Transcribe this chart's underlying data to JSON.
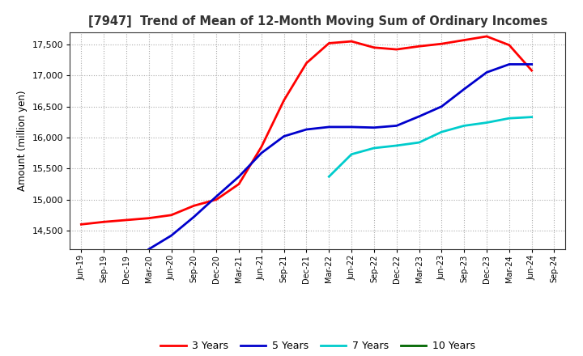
{
  "title": "[7947]  Trend of Mean of 12-Month Moving Sum of Ordinary Incomes",
  "ylabel": "Amount (million yen)",
  "ylim": [
    14200,
    17700
  ],
  "yticks": [
    14500,
    15000,
    15500,
    16000,
    16500,
    17000,
    17500
  ],
  "background_color": "#ffffff",
  "plot_bg_color": "#ffffff",
  "grid_color": "#aaaaaa",
  "x_labels": [
    "Jun-19",
    "Sep-19",
    "Dec-19",
    "Mar-20",
    "Jun-20",
    "Sep-20",
    "Dec-20",
    "Mar-21",
    "Jun-21",
    "Sep-21",
    "Dec-21",
    "Mar-22",
    "Jun-22",
    "Sep-22",
    "Dec-22",
    "Mar-23",
    "Jun-23",
    "Sep-23",
    "Dec-23",
    "Mar-24",
    "Jun-24",
    "Sep-24"
  ],
  "series": {
    "3 Years": {
      "color": "#ff0000",
      "linewidth": 2.0,
      "data_x": [
        0,
        1,
        2,
        3,
        4,
        5,
        6,
        7,
        8,
        9,
        10,
        11,
        12,
        13,
        14,
        15,
        16,
        17,
        18,
        19,
        20
      ],
      "data_y": [
        14600,
        14640,
        14670,
        14700,
        14750,
        14900,
        15000,
        15250,
        15850,
        16600,
        17200,
        17520,
        17550,
        17450,
        17420,
        17470,
        17510,
        17570,
        17630,
        17490,
        17080
      ]
    },
    "5 Years": {
      "color": "#0000cc",
      "linewidth": 2.0,
      "data_x": [
        3,
        4,
        5,
        6,
        7,
        8,
        9,
        10,
        11,
        12,
        13,
        14,
        15,
        16,
        17,
        18,
        19,
        20
      ],
      "data_y": [
        14200,
        14420,
        14720,
        15050,
        15370,
        15750,
        16020,
        16130,
        16170,
        16170,
        16160,
        16190,
        16340,
        16500,
        16780,
        17050,
        17180,
        17180
      ]
    },
    "7 Years": {
      "color": "#00cccc",
      "linewidth": 2.0,
      "data_x": [
        11,
        12,
        13,
        14,
        15,
        16,
        17,
        18,
        19,
        20
      ],
      "data_y": [
        15370,
        15730,
        15830,
        15870,
        15920,
        16090,
        16190,
        16240,
        16310,
        16330
      ]
    },
    "10 Years": {
      "color": "#006600",
      "linewidth": 2.0,
      "data_x": [],
      "data_y": []
    }
  },
  "legend_entries": [
    "3 Years",
    "5 Years",
    "7 Years",
    "10 Years"
  ],
  "legend_colors": [
    "#ff0000",
    "#0000cc",
    "#00cccc",
    "#006600"
  ]
}
